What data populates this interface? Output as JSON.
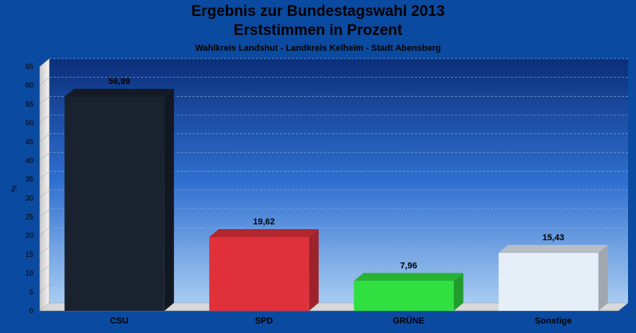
{
  "chart_data": {
    "type": "bar",
    "title": "Ergebnis zur Bundestagswahl 2013",
    "subtitle_line": "Erststimmen in Prozent",
    "subtitle": "Wahlkreis Landshut - Landkreis Kelheim - Stadt Abensberg",
    "xlabel": "",
    "ylabel": "%",
    "ylim": [
      0,
      65
    ],
    "yticks": [
      0,
      5,
      10,
      15,
      20,
      25,
      30,
      35,
      40,
      45,
      50,
      55,
      60,
      65
    ],
    "grid": true,
    "categories": [
      "CSU",
      "SPD",
      "GRÜNE",
      "Sonstige"
    ],
    "values": [
      56.99,
      19.62,
      7.96,
      15.43
    ],
    "value_labels": [
      "56,99",
      "19,62",
      "7,96",
      "15,43"
    ],
    "colors": [
      "#1a2230",
      "#e0303a",
      "#30e040",
      "#e6eef8"
    ]
  }
}
